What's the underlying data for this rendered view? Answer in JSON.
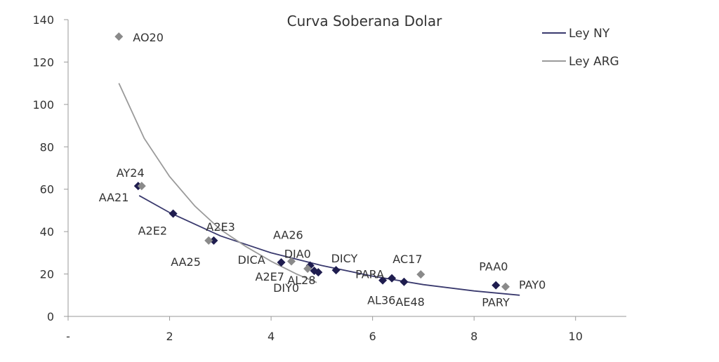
{
  "chart_data": {
    "type": "scatter",
    "title": "Curva Soberana Dolar",
    "xlabel": "",
    "ylabel": "",
    "xlim": [
      0,
      11
    ],
    "ylim": [
      0,
      140
    ],
    "x_ticks": [
      {
        "value": 0,
        "label": "-"
      },
      {
        "value": 2,
        "label": "2"
      },
      {
        "value": 4,
        "label": "4"
      },
      {
        "value": 6,
        "label": "6"
      },
      {
        "value": 8,
        "label": "8"
      },
      {
        "value": 10,
        "label": "10"
      }
    ],
    "y_ticks": [
      0,
      20,
      40,
      60,
      80,
      100,
      120,
      140
    ],
    "grid": false,
    "legend_position": "top-right",
    "colors": {
      "ny": "#1f1d4f",
      "arg": "#8a8a8a",
      "ny_line": "#3a3a6e",
      "arg_line": "#9a9a9a"
    },
    "series": [
      {
        "name": "Ley NY",
        "points": [
          {
            "x": 1.38,
            "y": 61.5
          },
          {
            "x": 2.07,
            "y": 48.5
          },
          {
            "x": 2.87,
            "y": 35.8
          },
          {
            "x": 4.2,
            "y": 25.5
          },
          {
            "x": 4.77,
            "y": 24.0
          },
          {
            "x": 4.85,
            "y": 21.5
          },
          {
            "x": 4.93,
            "y": 20.8
          },
          {
            "x": 5.28,
            "y": 21.8
          },
          {
            "x": 6.2,
            "y": 17.0
          },
          {
            "x": 6.38,
            "y": 18.0
          },
          {
            "x": 6.62,
            "y": 16.3
          },
          {
            "x": 8.43,
            "y": 14.7
          }
        ]
      },
      {
        "name": "Ley ARG",
        "points": [
          {
            "x": 1.0,
            "y": 132.0
          },
          {
            "x": 1.45,
            "y": 61.5
          },
          {
            "x": 2.77,
            "y": 35.8
          },
          {
            "x": 4.4,
            "y": 26.0
          },
          {
            "x": 4.72,
            "y": 22.5
          },
          {
            "x": 6.95,
            "y": 19.8
          },
          {
            "x": 8.62,
            "y": 14.0
          }
        ]
      }
    ],
    "trendlines": [
      {
        "name": "Ley NY",
        "points": [
          [
            1.4,
            57
          ],
          [
            2,
            49
          ],
          [
            3,
            38
          ],
          [
            4,
            30
          ],
          [
            5,
            24
          ],
          [
            6,
            19
          ],
          [
            7,
            15
          ],
          [
            8,
            12
          ],
          [
            8.9,
            10
          ]
        ]
      },
      {
        "name": "Ley ARG",
        "points": [
          [
            1.0,
            110
          ],
          [
            1.5,
            84
          ],
          [
            2,
            66
          ],
          [
            2.5,
            52
          ],
          [
            3,
            41
          ],
          [
            3.5,
            33
          ],
          [
            4,
            26
          ],
          [
            4.5,
            20
          ],
          [
            4.9,
            16
          ]
        ]
      }
    ],
    "annotations": [
      {
        "text": "AO20",
        "x": 1.0,
        "y": 132.0
      },
      {
        "text": "AY24",
        "x": 1.45,
        "y": 61.5
      },
      {
        "text": "AA21",
        "x": 1.38,
        "y": 61.5
      },
      {
        "text": "A2E2",
        "x": 2.07,
        "y": 48.5
      },
      {
        "text": "A2E3",
        "x": 2.87,
        "y": 35.8
      },
      {
        "text": "AA25",
        "x": 2.77,
        "y": 35.8
      },
      {
        "text": "AA26",
        "x": 4.4,
        "y": 26.0
      },
      {
        "text": "DICA",
        "x": 4.2,
        "y": 25.5
      },
      {
        "text": "A2E7",
        "x": 4.2,
        "y": 25.5
      },
      {
        "text": "DIA0",
        "x": 4.77,
        "y": 24.0
      },
      {
        "text": "DICY",
        "x": 5.28,
        "y": 21.8
      },
      {
        "text": "AL28",
        "x": 4.93,
        "y": 20.8
      },
      {
        "text": "DIY0",
        "x": 4.72,
        "y": 22.5
      },
      {
        "text": "PARA",
        "x": 6.38,
        "y": 18.0
      },
      {
        "text": "AC17",
        "x": 6.95,
        "y": 19.8
      },
      {
        "text": "AL36",
        "x": 6.2,
        "y": 17.0
      },
      {
        "text": "AE48",
        "x": 6.62,
        "y": 16.3
      },
      {
        "text": "PAA0",
        "x": 8.43,
        "y": 14.7
      },
      {
        "text": "PAY0",
        "x": 8.62,
        "y": 14.0
      },
      {
        "text": "PARY",
        "x": 8.43,
        "y": 14.7
      }
    ]
  }
}
